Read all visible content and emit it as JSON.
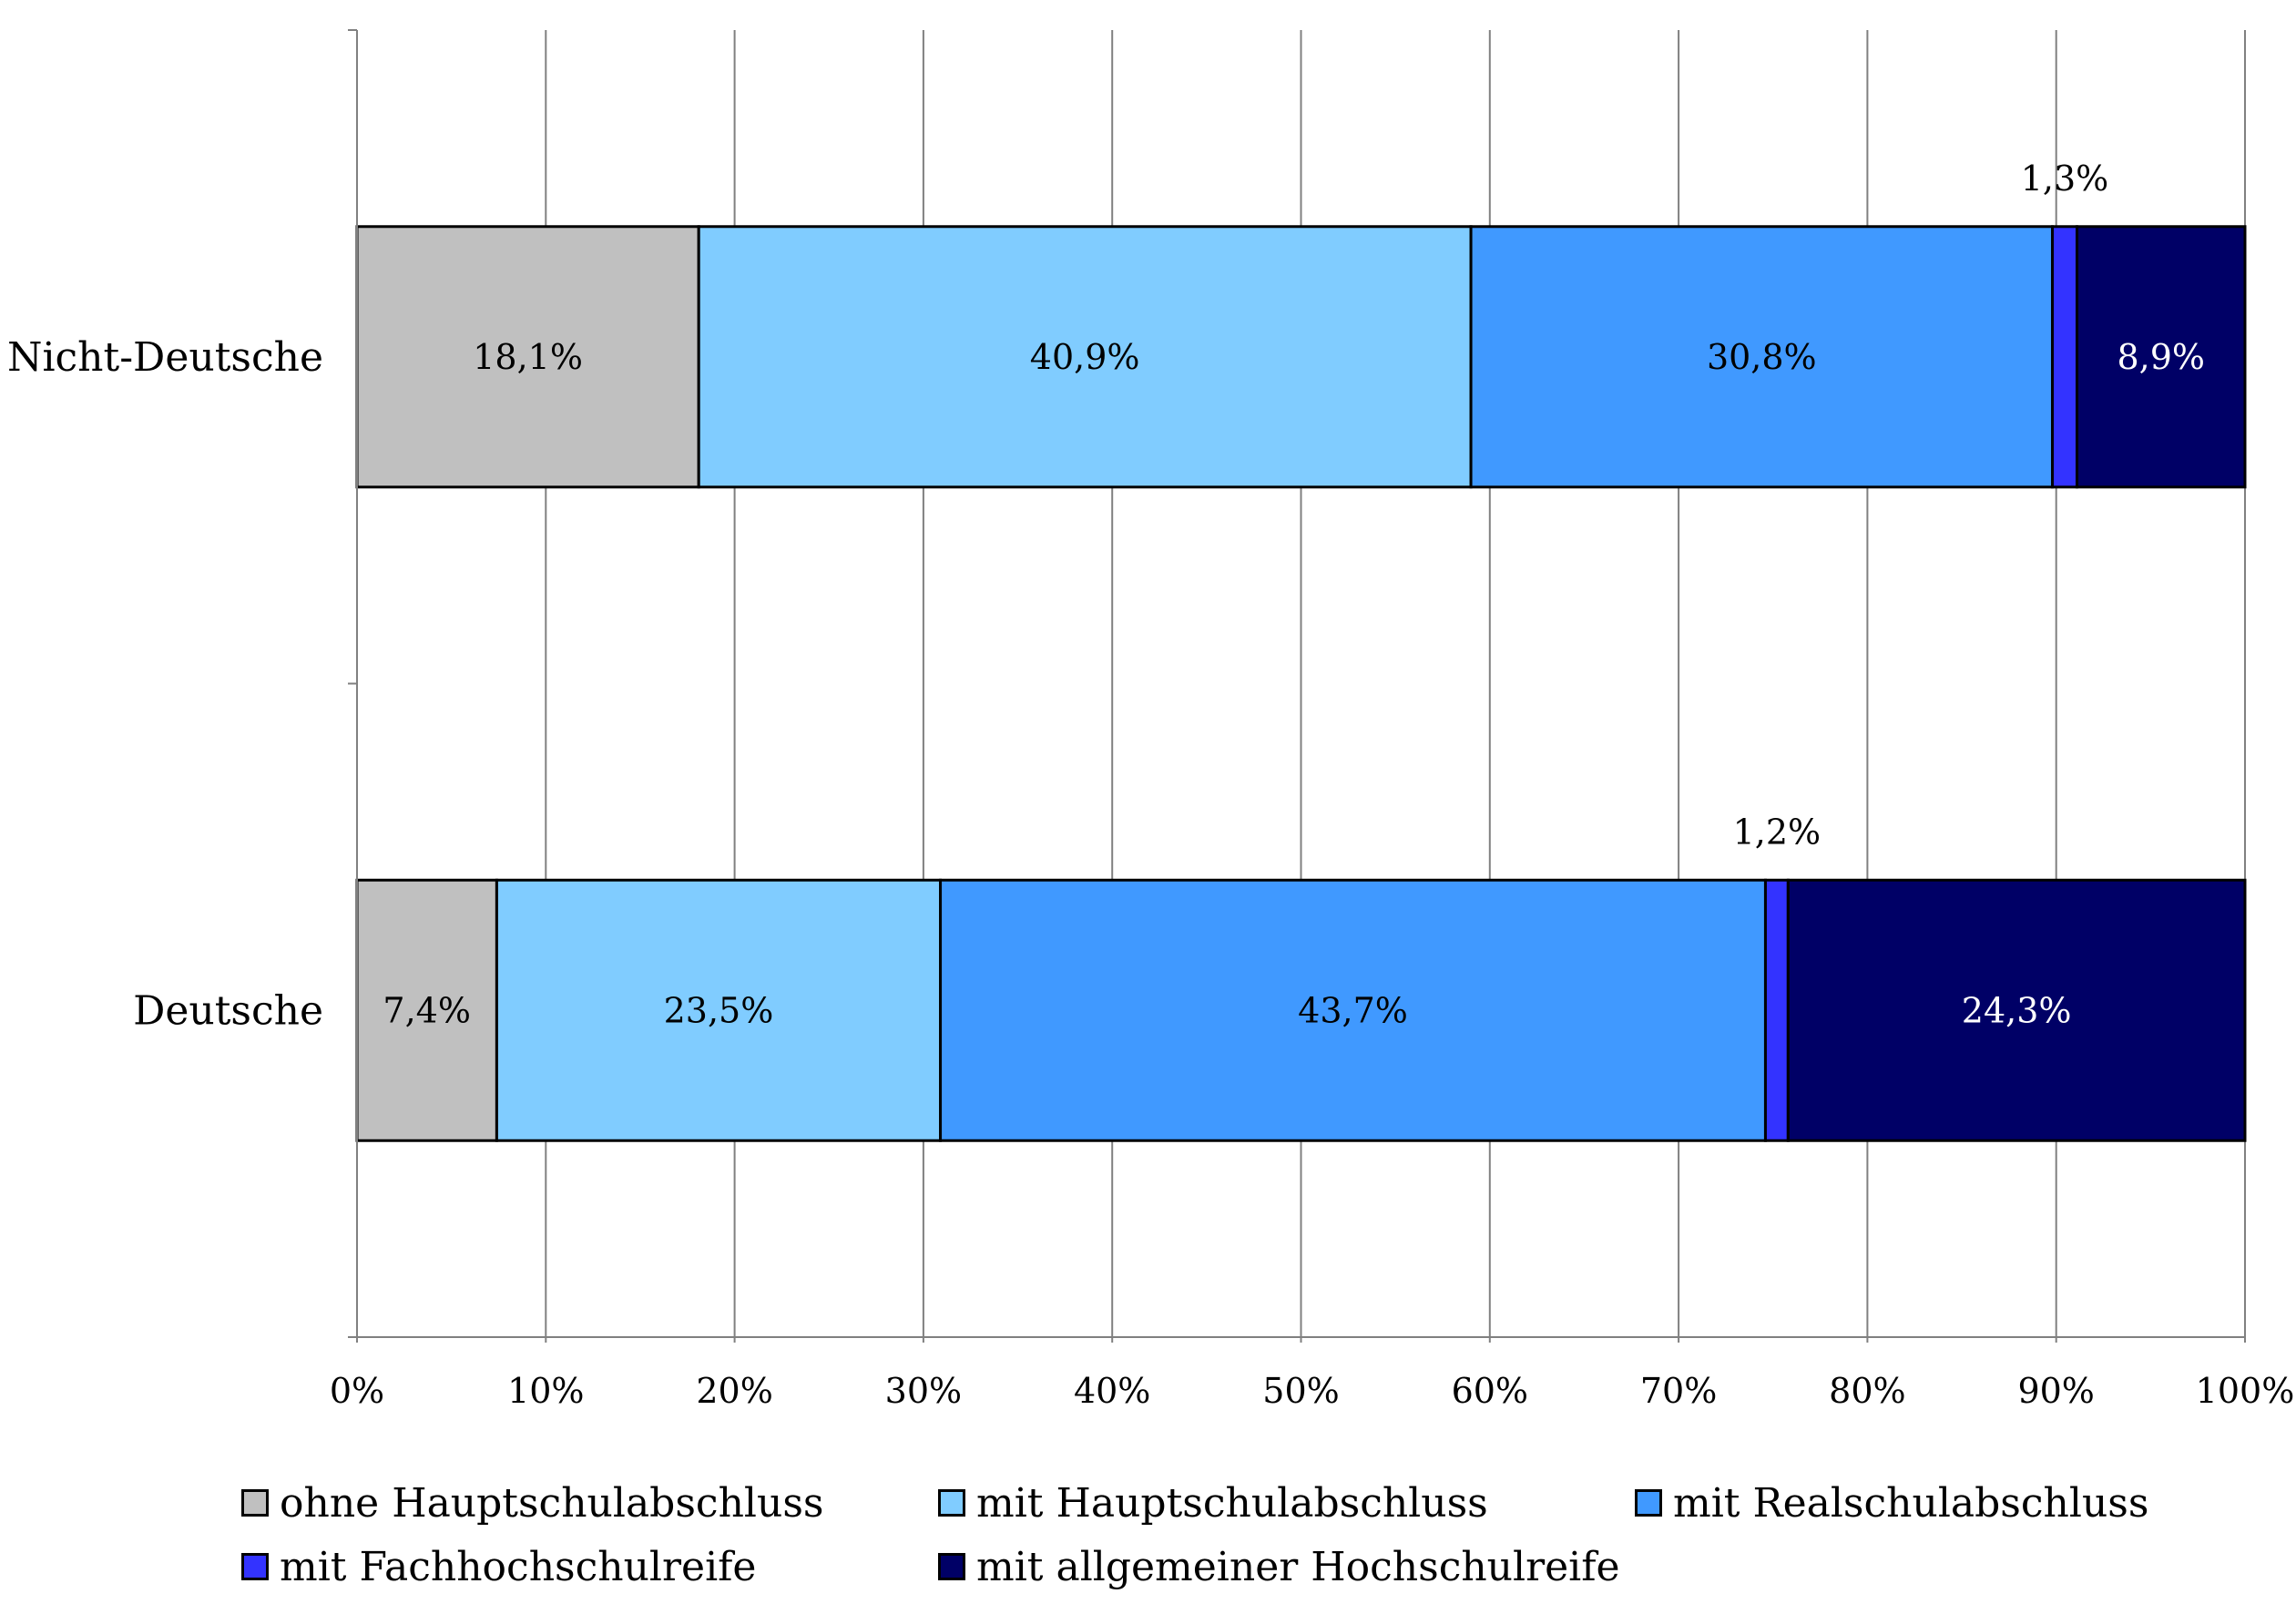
{
  "chart_data": {
    "type": "bar",
    "orientation": "horizontal",
    "stacked": "percent",
    "categories": [
      "Nicht-Deutsche",
      "Deutsche"
    ],
    "series": [
      {
        "name": "ohne Hauptschulabschluss",
        "values": [
          18.1,
          7.4
        ],
        "labels": [
          "18,1%",
          "7,4%"
        ],
        "color": "#c0c0c0",
        "label_color": "#000000"
      },
      {
        "name": "mit Hauptschulabschluss",
        "values": [
          40.9,
          23.5
        ],
        "labels": [
          "40,9%",
          "23,5%"
        ],
        "color": "#80ccff",
        "label_color": "#000000"
      },
      {
        "name": "mit Realschulabschluss",
        "values": [
          30.8,
          43.7
        ],
        "labels": [
          "30,8%",
          "43,7%"
        ],
        "color": "#4099ff",
        "label_color": "#000000"
      },
      {
        "name": "mit Fachhochschulreife",
        "values": [
          1.3,
          1.2
        ],
        "labels": [
          "1,3%",
          "1,2%"
        ],
        "color": "#3333ff",
        "label_color": "#000000",
        "label_position": "above"
      },
      {
        "name": "mit allgemeiner Hochschulreife",
        "values": [
          8.9,
          24.3
        ],
        "labels": [
          "8,9%",
          "24,3%"
        ],
        "color": "#000066",
        "label_color": "#ffffff"
      }
    ],
    "x_ticks": [
      "0%",
      "10%",
      "20%",
      "30%",
      "40%",
      "50%",
      "60%",
      "70%",
      "80%",
      "90%",
      "100%"
    ],
    "xlim": [
      0,
      100
    ],
    "grid": "vertical",
    "legend": "bottom"
  }
}
